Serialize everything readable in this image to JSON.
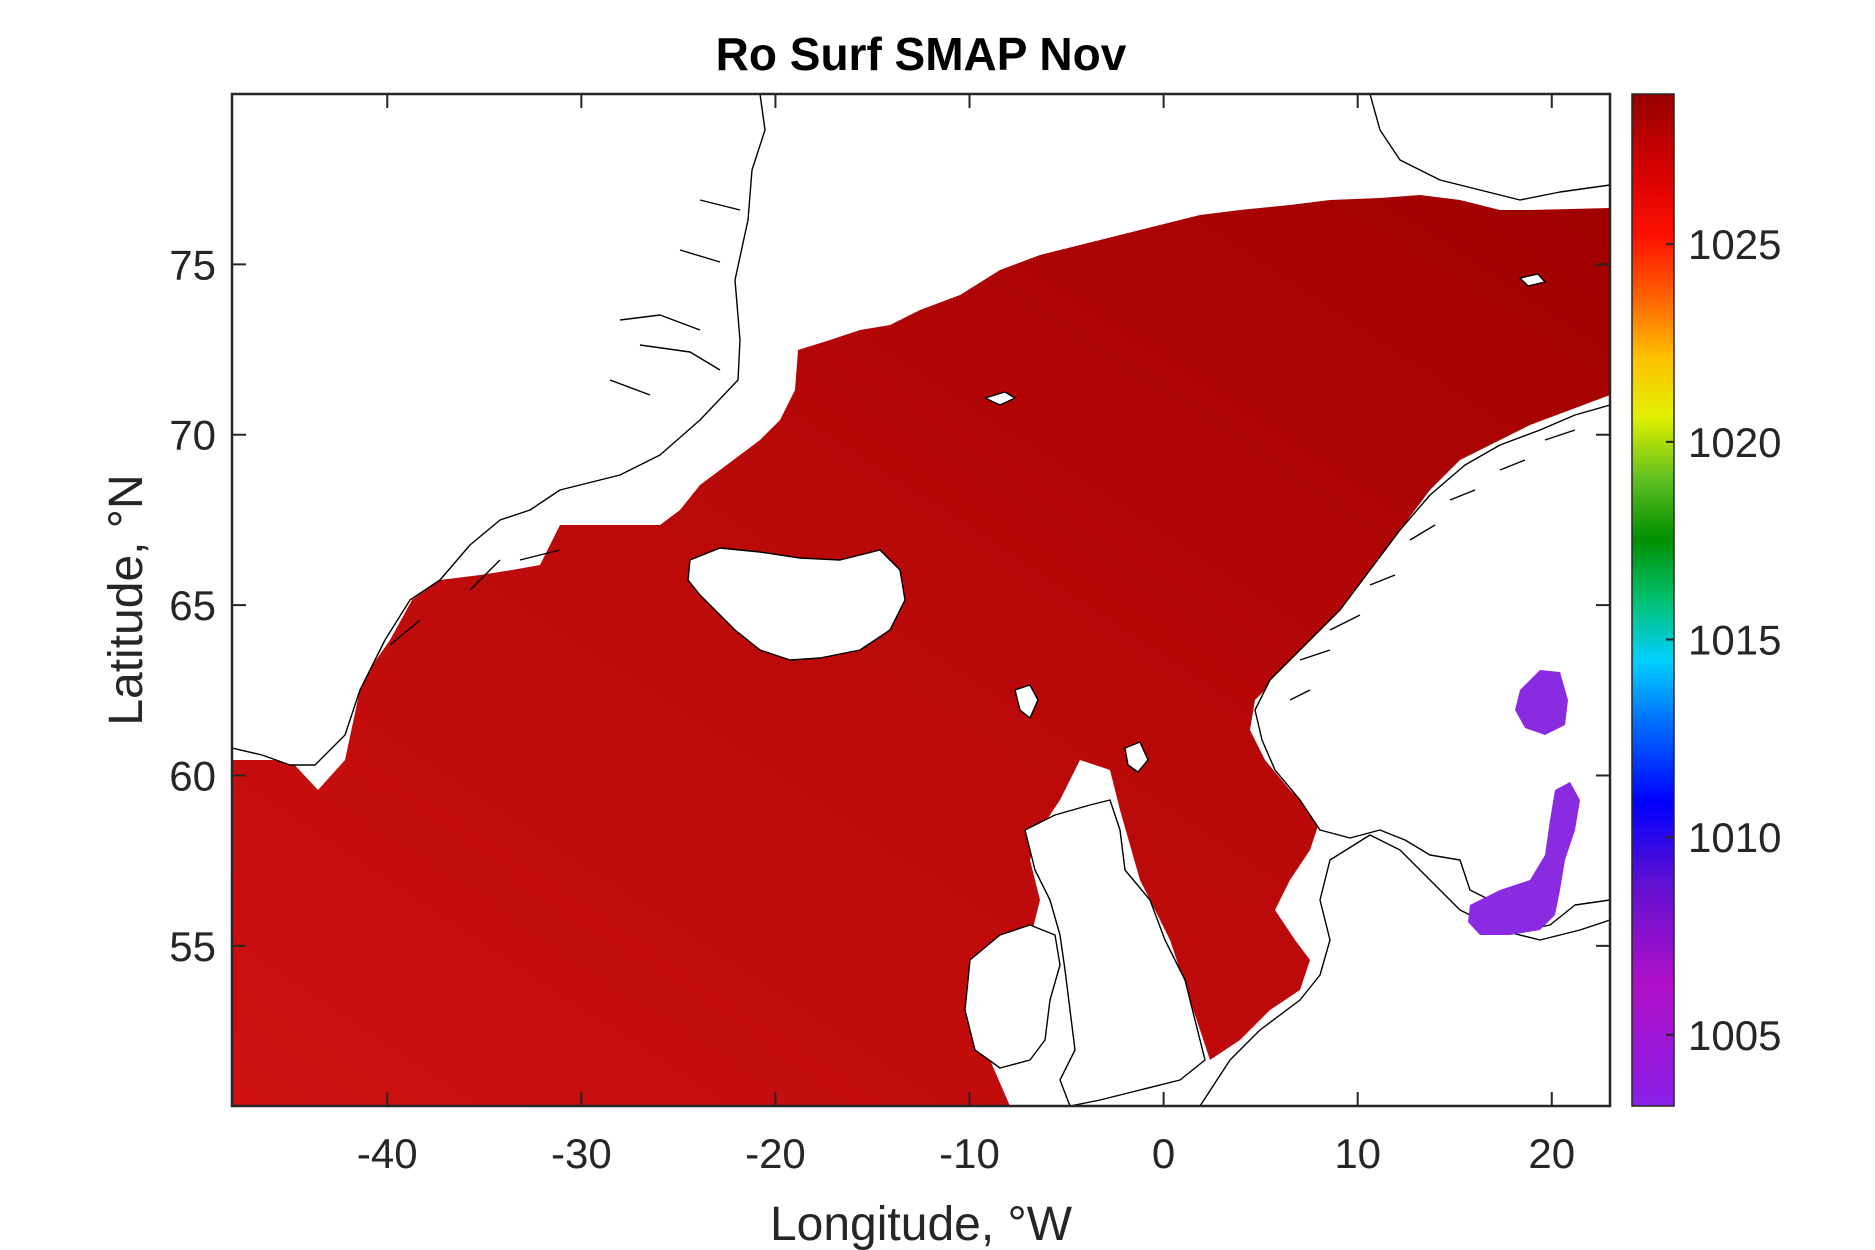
{
  "chart_data": {
    "type": "heatmap",
    "title": "Ro Surf SMAP Nov",
    "xlabel": "Longitude, °W",
    "ylabel": "Latitude, °N",
    "xlim": [
      -48,
      23
    ],
    "ylim": [
      50.3,
      80
    ],
    "xticks": [
      -40,
      -30,
      -20,
      -10,
      0,
      10,
      20
    ],
    "yticks": [
      55,
      60,
      65,
      70,
      75
    ],
    "colorbar": {
      "range": [
        1003.2,
        1028.8
      ],
      "ticks": [
        1005,
        1010,
        1015,
        1020,
        1025
      ],
      "colormap": "jet-like (purple to dark red)"
    },
    "typical_values": {
      "open_ocean": 1026.8,
      "norwegian_greenland_seas": 1027.6,
      "coastal_edges": 1025.0,
      "baltic_sea": 1006.5
    },
    "colors": {
      "ocean_dark": "#c10a0a",
      "ocean_north": "#a80000",
      "baltic": "#8a2be2"
    }
  }
}
